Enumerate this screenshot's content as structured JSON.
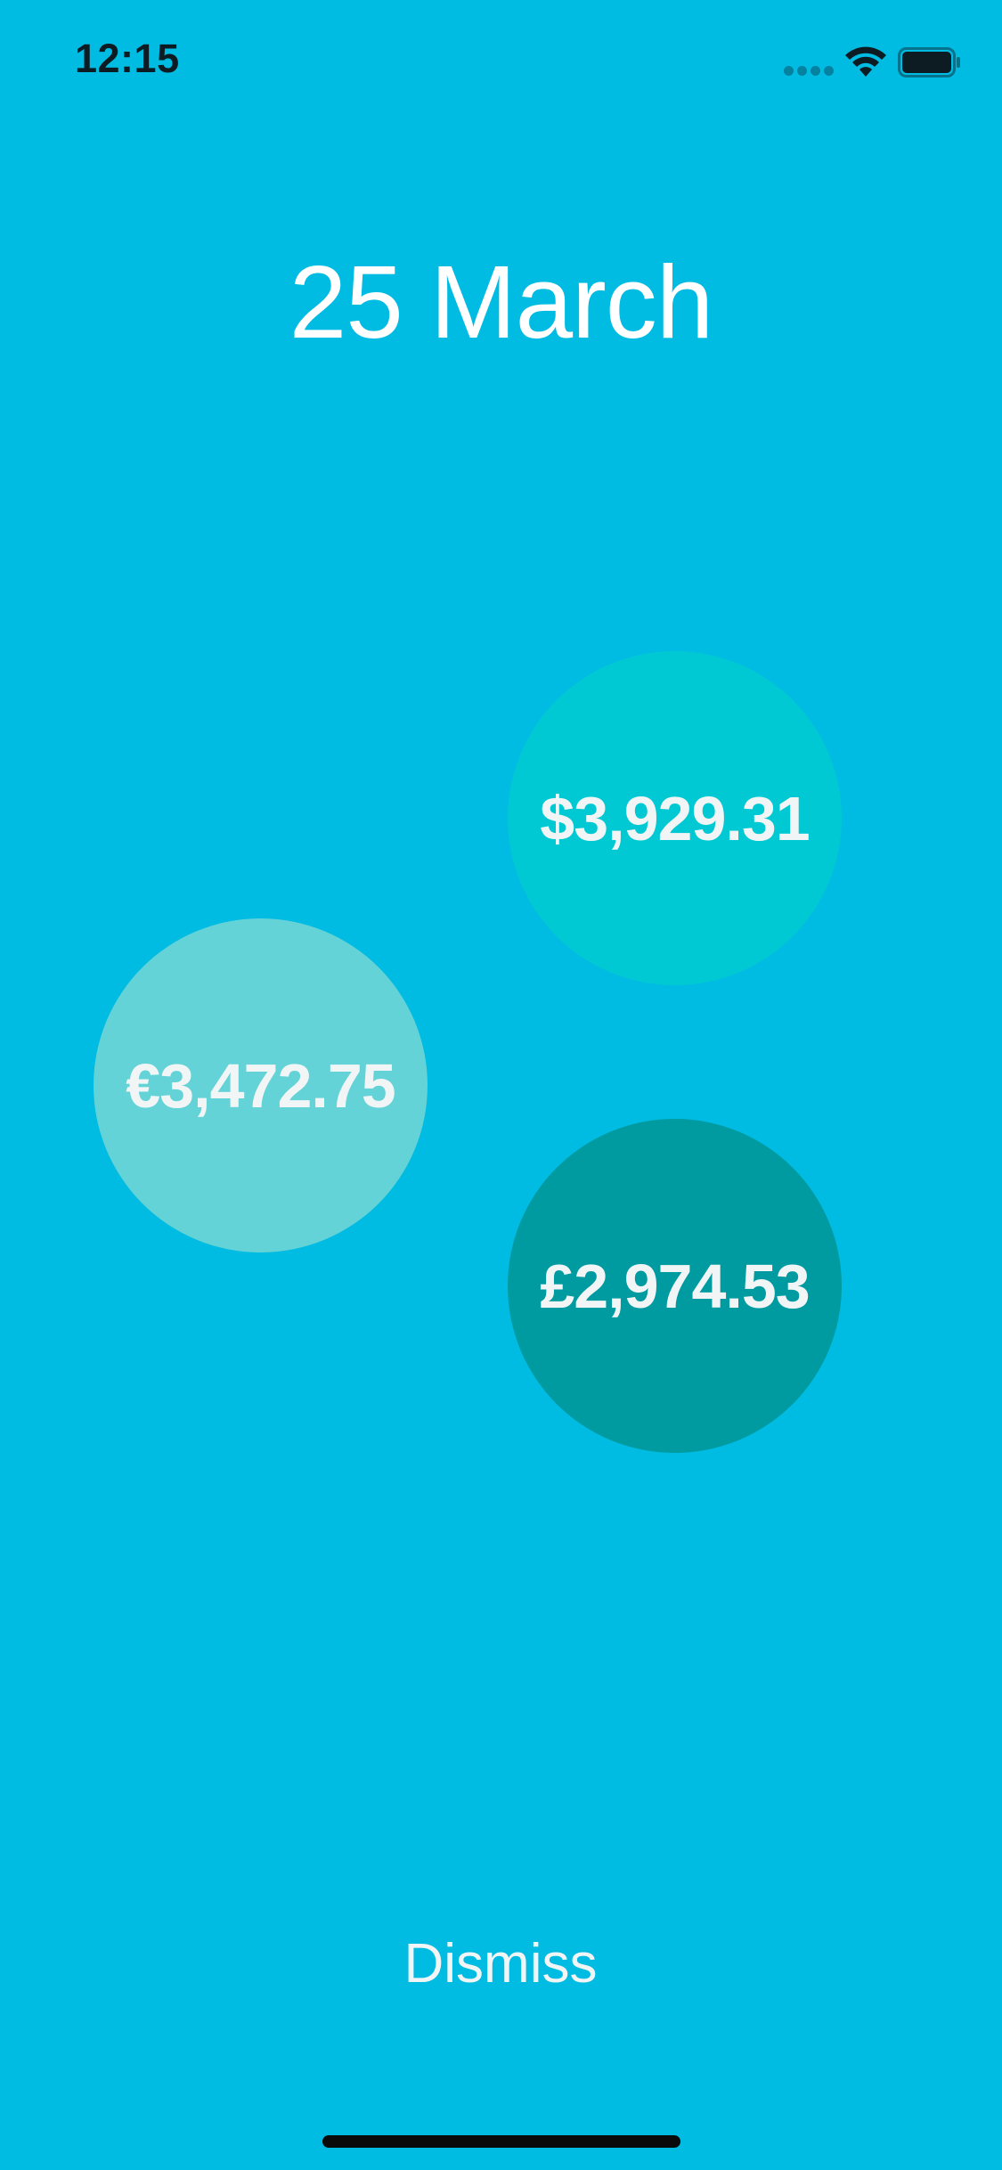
{
  "status_bar": {
    "time": "12:15",
    "signal_icon": "signal-dots-icon",
    "wifi_icon": "wifi-icon",
    "battery_icon": "battery-icon"
  },
  "date_title": "25 March",
  "bubbles": [
    {
      "amount": "$3,929.31",
      "color": "#00c9d4"
    },
    {
      "amount": "€3,472.75",
      "color": "#63d3d7"
    },
    {
      "amount": "£2,974.53",
      "color": "#009ba0"
    }
  ],
  "dismiss_label": "Dismiss",
  "colors": {
    "background": "#00bbe2",
    "text": "#ffffff",
    "status_text": "#0d1b22"
  }
}
